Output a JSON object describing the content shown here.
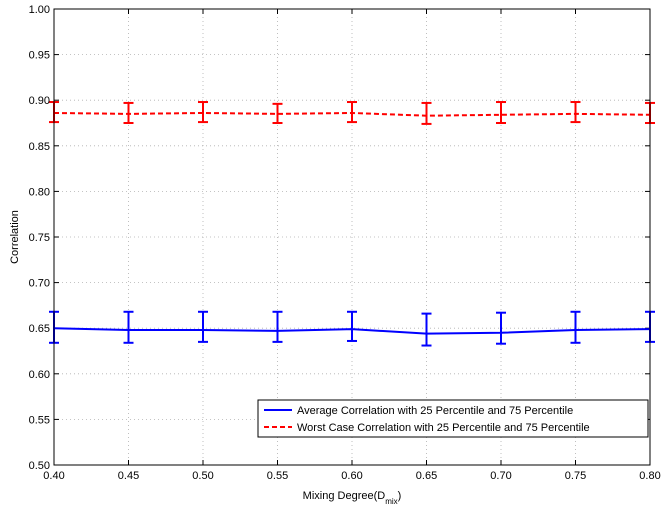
{
  "chart_data": {
    "type": "line",
    "title": "",
    "xlabel": "Mixing Degree(D",
    "xlabel_sub": "mix",
    "xlabel_close": ")",
    "ylabel": "Correlation",
    "xlim": [
      0.4,
      0.8
    ],
    "ylim": [
      0.5,
      1.0
    ],
    "grid": true,
    "legend_position": "lower-right",
    "x": [
      0.4,
      0.45,
      0.5,
      0.55,
      0.6,
      0.65,
      0.7,
      0.75,
      0.8
    ],
    "x_tick_labels": [
      "0.40",
      "0.45",
      "0.50",
      "0.55",
      "0.60",
      "0.65",
      "0.70",
      "0.75",
      "0.80"
    ],
    "y_tick_values": [
      0.5,
      0.55,
      0.6,
      0.65,
      0.7,
      0.75,
      0.8,
      0.85,
      0.9,
      0.95,
      1.0
    ],
    "y_tick_labels": [
      "0.50",
      "0.55",
      "0.60",
      "0.65",
      "0.70",
      "0.75",
      "0.80",
      "0.85",
      "0.90",
      "0.95",
      "1.00"
    ],
    "series": [
      {
        "name": "Average Correlation with 25 Percentile and 75 Percentile",
        "color": "#0000ff",
        "dash": "solid",
        "values": [
          0.65,
          0.648,
          0.648,
          0.647,
          0.649,
          0.644,
          0.645,
          0.648,
          0.649
        ],
        "lower": [
          0.634,
          0.634,
          0.635,
          0.635,
          0.636,
          0.631,
          0.633,
          0.634,
          0.635
        ],
        "upper": [
          0.668,
          0.668,
          0.668,
          0.668,
          0.668,
          0.666,
          0.667,
          0.668,
          0.668
        ]
      },
      {
        "name": "Worst Case Correlation with 25 Percentile and 75 Percentile",
        "color": "#ff0000",
        "dash": "dashed",
        "values": [
          0.886,
          0.885,
          0.886,
          0.885,
          0.886,
          0.883,
          0.884,
          0.885,
          0.884
        ],
        "lower": [
          0.876,
          0.875,
          0.876,
          0.875,
          0.876,
          0.874,
          0.875,
          0.876,
          0.875
        ],
        "upper": [
          0.898,
          0.897,
          0.898,
          0.896,
          0.898,
          0.897,
          0.898,
          0.898,
          0.897
        ]
      }
    ]
  }
}
